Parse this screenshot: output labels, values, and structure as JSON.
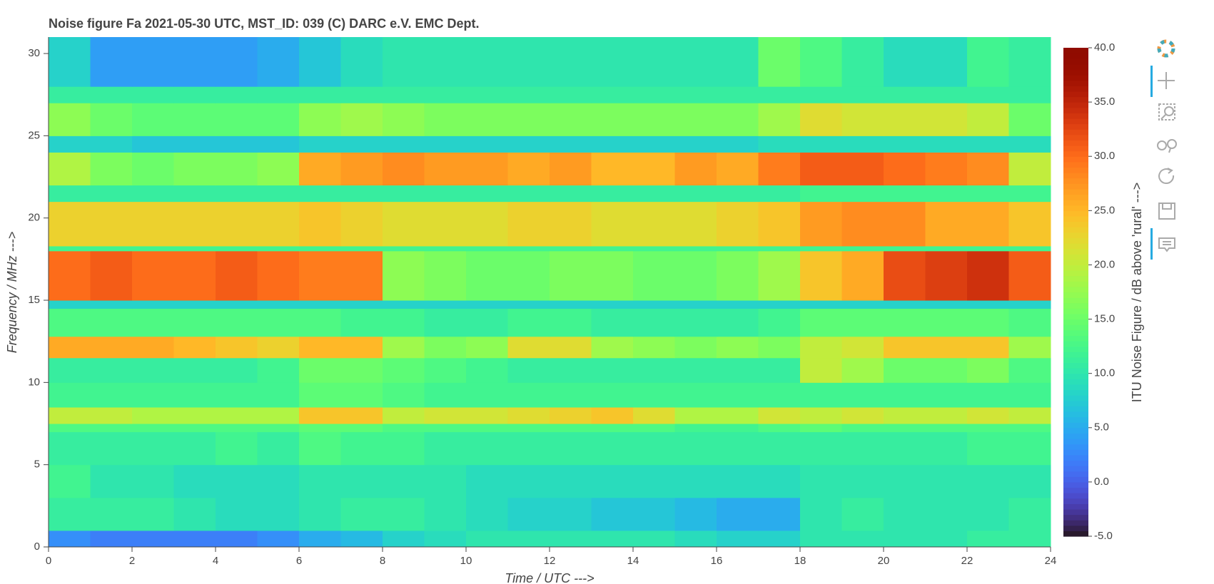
{
  "chart_data": {
    "type": "heatmap",
    "title": "Noise figure Fa  2021-05-30  UTC,  MST_ID:  039   (C) DARC e.V. EMC Dept.",
    "x_label": "Time / UTC --->",
    "y_label": "Frequency / MHz --->",
    "colorbar_label": "ITU Noise Figure / dB above 'rural' --->",
    "colormap": "turbo",
    "x_edges": [
      0,
      1,
      2,
      3,
      4,
      5,
      6,
      7,
      8,
      9,
      10,
      11,
      12,
      13,
      14,
      15,
      16,
      17,
      18,
      19,
      20,
      21,
      22,
      23,
      24
    ],
    "y_edges": [
      0,
      1,
      3,
      5,
      7,
      7.5,
      8.5,
      10,
      11.5,
      12.8,
      14.5,
      15,
      18,
      18.3,
      21,
      22,
      24,
      25,
      27,
      28,
      31
    ],
    "z": [
      [
        3,
        2,
        2,
        2,
        2,
        3,
        5,
        6,
        8,
        9,
        10,
        10,
        10,
        10,
        10,
        9,
        8,
        8,
        10,
        10,
        10,
        10,
        11,
        11
      ],
      [
        11,
        11,
        11,
        10,
        9,
        9,
        10,
        11,
        11,
        10,
        9,
        8,
        8,
        7,
        7,
        6,
        5,
        5,
        10,
        11,
        10,
        10,
        10,
        11
      ],
      [
        12,
        10,
        10,
        9,
        9,
        9,
        10,
        10,
        10,
        10,
        9,
        9,
        9,
        9,
        9,
        9,
        9,
        9,
        10,
        10,
        10,
        10,
        10,
        10
      ],
      [
        11,
        11,
        11,
        11,
        12,
        11,
        13,
        12,
        12,
        11,
        11,
        11,
        11,
        11,
        11,
        11,
        11,
        11,
        11,
        11,
        11,
        11,
        12,
        12
      ],
      [
        13,
        13,
        13,
        13,
        13,
        13,
        14,
        14,
        13,
        13,
        13,
        13,
        13,
        13,
        13,
        12,
        12,
        13,
        14,
        13,
        13,
        13,
        13,
        13
      ],
      [
        20,
        20,
        19,
        19,
        19,
        19,
        24,
        24,
        20,
        21,
        21,
        22,
        23,
        24,
        22,
        19,
        19,
        21,
        20,
        21,
        20,
        20,
        21,
        20
      ],
      [
        12,
        12,
        12,
        12,
        12,
        12,
        14,
        14,
        13,
        12,
        12,
        12,
        12,
        12,
        12,
        12,
        12,
        12,
        12,
        12,
        12,
        12,
        12,
        12
      ],
      [
        11,
        11,
        11,
        11,
        11,
        12,
        15,
        15,
        14,
        13,
        12,
        11,
        11,
        11,
        11,
        11,
        11,
        11,
        20,
        18,
        15,
        15,
        16,
        13
      ],
      [
        26,
        26,
        26,
        25,
        24,
        23,
        25,
        25,
        18,
        16,
        17,
        22,
        22,
        18,
        17,
        16,
        17,
        16,
        20,
        21,
        24,
        24,
        24,
        18
      ],
      [
        13,
        13,
        13,
        13,
        13,
        13,
        13,
        12,
        12,
        11,
        11,
        12,
        12,
        11,
        11,
        11,
        11,
        12,
        14,
        14,
        14,
        14,
        14,
        13
      ],
      [
        8,
        8,
        8,
        8,
        8,
        8,
        8,
        8,
        8,
        8,
        8,
        8,
        8,
        8,
        8,
        8,
        8,
        8,
        8,
        8,
        8,
        8,
        8,
        8
      ],
      [
        30,
        31,
        30,
        30,
        31,
        30,
        29,
        29,
        17,
        16,
        15,
        15,
        16,
        16,
        15,
        15,
        16,
        18,
        24,
        26,
        32,
        33,
        34,
        31
      ],
      [
        12,
        12,
        12,
        12,
        12,
        12,
        12,
        12,
        12,
        12,
        12,
        12,
        12,
        12,
        12,
        12,
        12,
        12,
        12,
        12,
        12,
        12,
        12,
        12
      ],
      [
        23,
        23,
        23,
        23,
        23,
        23,
        24,
        23,
        22,
        22,
        22,
        23,
        23,
        22,
        22,
        22,
        23,
        24,
        27,
        28,
        28,
        26,
        26,
        24
      ],
      [
        11,
        11,
        11,
        11,
        11,
        11,
        11,
        11,
        11,
        11,
        11,
        11,
        11,
        11,
        11,
        11,
        11,
        11,
        12,
        12,
        12,
        12,
        12,
        12
      ],
      [
        19,
        16,
        15,
        16,
        16,
        17,
        26,
        27,
        28,
        27,
        27,
        26,
        27,
        25,
        25,
        27,
        26,
        29,
        31,
        31,
        30,
        29,
        28,
        20
      ],
      [
        8,
        8,
        7,
        7,
        7,
        7,
        8,
        8,
        8,
        8,
        8,
        8,
        8,
        8,
        8,
        8,
        8,
        9,
        9,
        9,
        9,
        9,
        9,
        9
      ],
      [
        17,
        15,
        14,
        14,
        14,
        14,
        17,
        18,
        17,
        16,
        16,
        16,
        16,
        16,
        16,
        16,
        16,
        18,
        22,
        21,
        21,
        21,
        20,
        15
      ],
      [
        11,
        11,
        11,
        11,
        11,
        11,
        11,
        11,
        11,
        11,
        11,
        11,
        11,
        11,
        11,
        11,
        11,
        11,
        11,
        11,
        11,
        11,
        11,
        11
      ],
      [
        8,
        4,
        4,
        4,
        4,
        5,
        7,
        9,
        10,
        10,
        10,
        10,
        10,
        10,
        10,
        10,
        10,
        15,
        13,
        11,
        9,
        9,
        12,
        11
      ]
    ],
    "xlim": [
      0,
      24
    ],
    "xticks": [
      0,
      2,
      4,
      6,
      8,
      10,
      12,
      14,
      16,
      18,
      20,
      22,
      24
    ],
    "ylim": [
      0,
      31
    ],
    "yticks": [
      0,
      5,
      10,
      15,
      20,
      25,
      30
    ],
    "clim": [
      -5,
      40
    ],
    "cticks": [
      {
        "value": -5,
        "label": "-5.0"
      },
      {
        "value": 0,
        "label": "0.0"
      },
      {
        "value": 5,
        "label": "5.0"
      },
      {
        "value": 10,
        "label": "10.0"
      },
      {
        "value": 15,
        "label": "15.0"
      },
      {
        "value": 20,
        "label": "20.0"
      },
      {
        "value": 25,
        "label": "25.0"
      },
      {
        "value": 30,
        "label": "30.0"
      },
      {
        "value": 35,
        "label": "35.0"
      },
      {
        "value": 40,
        "label": "40.0"
      }
    ]
  }
}
